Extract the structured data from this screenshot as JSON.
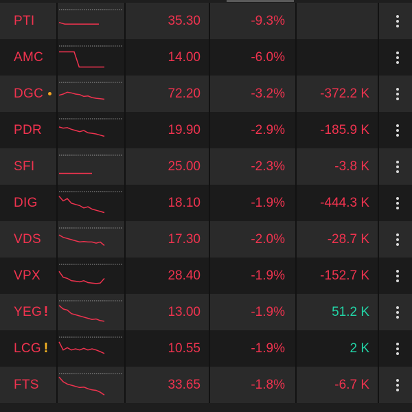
{
  "colors": {
    "down": "#f0334f",
    "up": "#22d3a5",
    "warn": "#f5b323",
    "background": "#1e1e1e"
  },
  "stocks": [
    {
      "ticker": "PTI",
      "flag": "",
      "price": "35.30",
      "change_pct": "-9.3%",
      "net_flow": "",
      "flow_sign": "neg",
      "spark": [
        0.55,
        0.62,
        0.62,
        0.62,
        0.62,
        0.62,
        0.62,
        0.62
      ]
    },
    {
      "ticker": "AMC",
      "flag": "",
      "price": "14.00",
      "change_pct": "-6.0%",
      "net_flow": "",
      "flow_sign": "neg",
      "spark": [
        0.25,
        0.25,
        0.25,
        0.25,
        0.9,
        0.9,
        0.9,
        0.9,
        0.9,
        0.9
      ]
    },
    {
      "ticker": "DGC",
      "flag": "dot",
      "price": "72.20",
      "change_pct": "-3.2%",
      "net_flow": "-372.2 K",
      "flow_sign": "neg",
      "spark": [
        0.55,
        0.5,
        0.42,
        0.45,
        0.5,
        0.52,
        0.6,
        0.58,
        0.65,
        0.68,
        0.7,
        0.72
      ]
    },
    {
      "ticker": "PDR",
      "flag": "",
      "price": "19.90",
      "change_pct": "-2.9%",
      "net_flow": "-185.9 K",
      "flow_sign": "neg",
      "spark": [
        0.35,
        0.4,
        0.38,
        0.45,
        0.5,
        0.55,
        0.5,
        0.6,
        0.62,
        0.65,
        0.7,
        0.75
      ]
    },
    {
      "ticker": "SFI",
      "flag": "",
      "price": "25.00",
      "change_pct": "-2.3%",
      "net_flow": "-3.8 K",
      "flow_sign": "neg",
      "spark": [
        0.78,
        0.78,
        0.78,
        0.78,
        0.78,
        0.78,
        0.78,
        0.78
      ]
    },
    {
      "ticker": "DIG",
      "flag": "",
      "price": "18.10",
      "change_pct": "-1.9%",
      "net_flow": "-444.3 K",
      "flow_sign": "neg",
      "spark": [
        0.2,
        0.4,
        0.3,
        0.5,
        0.55,
        0.6,
        0.7,
        0.65,
        0.75,
        0.8,
        0.85,
        0.9
      ]
    },
    {
      "ticker": "VDS",
      "flag": "",
      "price": "17.30",
      "change_pct": "-2.0%",
      "net_flow": "-28.7 K",
      "flow_sign": "neg",
      "spark": [
        0.3,
        0.4,
        0.45,
        0.5,
        0.55,
        0.6,
        0.58,
        0.6,
        0.6,
        0.65,
        0.6,
        0.75
      ]
    },
    {
      "ticker": "VPX",
      "flag": "",
      "price": "28.40",
      "change_pct": "-1.9%",
      "net_flow": "-152.7 K",
      "flow_sign": "neg",
      "spark": [
        0.3,
        0.55,
        0.6,
        0.7,
        0.72,
        0.75,
        0.7,
        0.78,
        0.8,
        0.82,
        0.8,
        0.6
      ]
    },
    {
      "ticker": "YEG",
      "flag": "red",
      "price": "13.00",
      "change_pct": "-1.9%",
      "net_flow": "51.2 K",
      "flow_sign": "pos",
      "spark": [
        0.2,
        0.35,
        0.4,
        0.55,
        0.6,
        0.65,
        0.7,
        0.75,
        0.8,
        0.78,
        0.85,
        0.88
      ]
    },
    {
      "ticker": "LCG",
      "flag": "yellow",
      "price": "10.55",
      "change_pct": "-1.9%",
      "net_flow": "2 K",
      "flow_sign": "pos",
      "spark": [
        0.2,
        0.55,
        0.45,
        0.55,
        0.5,
        0.55,
        0.48,
        0.55,
        0.5,
        0.55,
        0.62,
        0.7
      ]
    },
    {
      "ticker": "FTS",
      "flag": "",
      "price": "33.65",
      "change_pct": "-1.8%",
      "net_flow": "-6.7 K",
      "flow_sign": "neg",
      "spark": [
        0.15,
        0.35,
        0.45,
        0.5,
        0.55,
        0.6,
        0.58,
        0.65,
        0.7,
        0.72,
        0.8,
        0.92
      ]
    }
  ],
  "icons": {
    "menu": "more-vert-icon",
    "flag_red": "!",
    "flag_yellow": "!"
  }
}
